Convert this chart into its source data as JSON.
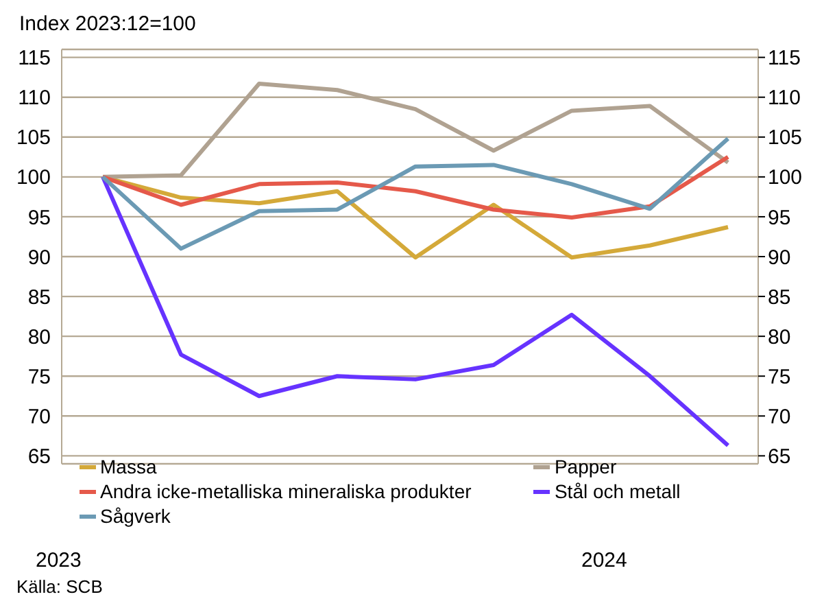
{
  "chart_data": {
    "type": "line",
    "title": "Index 2023:12=100",
    "categories": [
      null,
      null,
      null,
      null,
      null,
      null,
      null,
      null,
      null
    ],
    "ylim": [
      64,
      116
    ],
    "yticks": [
      65,
      70,
      75,
      80,
      85,
      90,
      95,
      100,
      105,
      110,
      115
    ],
    "y2lim": [
      64,
      116
    ],
    "y2ticks": [
      65,
      70,
      75,
      80,
      85,
      90,
      95,
      100,
      105,
      110,
      115
    ],
    "grid": "y",
    "legend": "bottom left",
    "marker": "none",
    "line_style": "solid",
    "series": [
      {
        "name": "Massa",
        "color": "#d4a939",
        "values": [
          100,
          97.4,
          96.7,
          98.2,
          89.9,
          96.5,
          89.9,
          91.4,
          93.7
        ]
      },
      {
        "name": "Papper",
        "color": "#b0a291",
        "values": [
          100,
          100.2,
          111.7,
          110.9,
          108.5,
          103.3,
          108.3,
          108.9,
          101.8
        ]
      },
      {
        "name": "Andra icke-metalliska mineraliska produkter",
        "color": "#e5594a",
        "values": [
          100,
          96.5,
          99.1,
          99.3,
          98.2,
          95.9,
          94.9,
          96.3,
          102.5
        ]
      },
      {
        "name": "Stål och metall",
        "color": "#6633ff",
        "values": [
          100,
          77.7,
          72.5,
          75.0,
          74.6,
          76.4,
          82.7,
          75.0,
          66.3
        ]
      },
      {
        "name": "Sågverk",
        "color": "#6b9ab4",
        "values": [
          100,
          91.0,
          95.7,
          95.9,
          101.3,
          101.5,
          99.1,
          96.0,
          104.8
        ]
      }
    ],
    "annotations": [
      "2023",
      "2024",
      "Källa: SCB"
    ]
  }
}
